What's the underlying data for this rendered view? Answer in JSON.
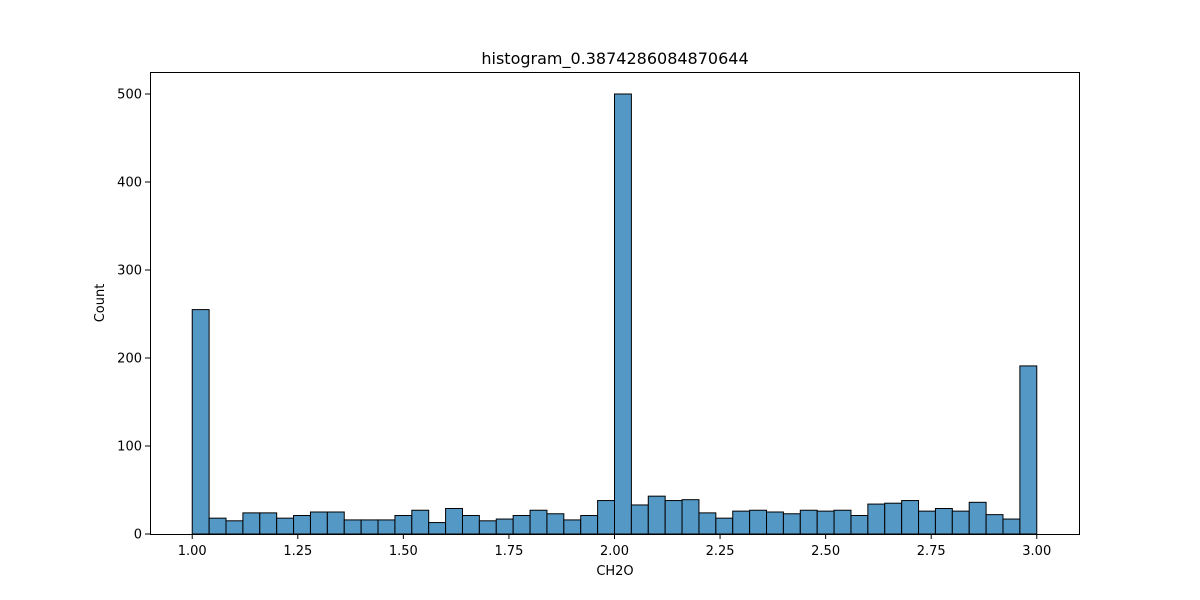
{
  "chart_data": {
    "type": "bar",
    "title": "histogram_0.3874286084870644",
    "xlabel": "CH2O",
    "ylabel": "Count",
    "xlim": [
      0.9,
      3.1
    ],
    "ylim": [
      0,
      525
    ],
    "xticks": [
      1.0,
      1.25,
      1.5,
      1.75,
      2.0,
      2.25,
      2.5,
      2.75,
      3.0
    ],
    "xtick_labels": [
      "1.00",
      "1.25",
      "1.50",
      "1.75",
      "2.00",
      "2.25",
      "2.50",
      "2.75",
      "3.00"
    ],
    "yticks": [
      0,
      100,
      200,
      300,
      400,
      500
    ],
    "ytick_labels": [
      "0",
      "100",
      "200",
      "300",
      "400",
      "500"
    ],
    "bin_start": 1.0,
    "bin_end": 3.0,
    "bin_count": 50,
    "values": [
      255,
      18,
      15,
      24,
      24,
      18,
      21,
      25,
      25,
      16,
      16,
      16,
      21,
      27,
      13,
      29,
      21,
      15,
      17,
      21,
      27,
      23,
      16,
      21,
      38,
      500,
      33,
      43,
      38,
      39,
      24,
      18,
      26,
      27,
      25,
      23,
      27,
      26,
      27,
      21,
      34,
      35,
      38,
      26,
      29,
      26,
      36,
      22,
      17,
      191
    ],
    "grid": false,
    "legend": "none",
    "bar_color": "#5498c6",
    "edge_color": "#000000"
  }
}
